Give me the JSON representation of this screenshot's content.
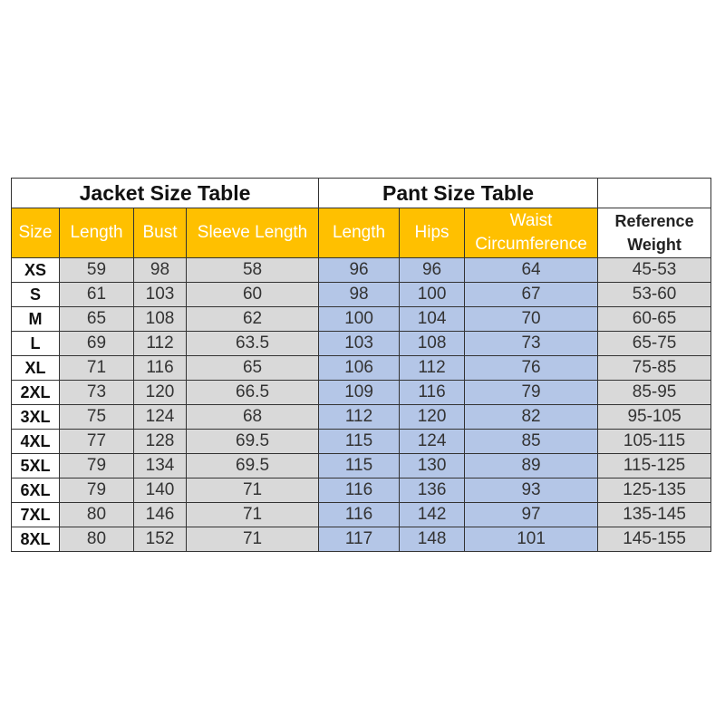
{
  "table": {
    "groups": [
      "Jacket Size Table",
      "Pant Size Table"
    ],
    "columns": [
      "Size",
      "Length",
      "Bust",
      "Sleeve Length",
      "Length",
      "Hips",
      "Waist Circumference",
      "Reference Weight"
    ],
    "rows": [
      [
        "XS",
        59,
        98,
        58,
        96,
        96,
        64,
        "45-53"
      ],
      [
        "S",
        61,
        103,
        60,
        98,
        100,
        67,
        "53-60"
      ],
      [
        "M",
        65,
        108,
        62,
        100,
        104,
        70,
        "60-65"
      ],
      [
        "L",
        69,
        112,
        63.5,
        103,
        108,
        73,
        "65-75"
      ],
      [
        "XL",
        71,
        116,
        65,
        106,
        112,
        76,
        "75-85"
      ],
      [
        "2XL",
        73,
        120,
        66.5,
        109,
        116,
        79,
        "85-95"
      ],
      [
        "3XL",
        75,
        124,
        68,
        112,
        120,
        82,
        "95-105"
      ],
      [
        "4XL",
        77,
        128,
        69.5,
        115,
        124,
        85,
        "105-115"
      ],
      [
        "5XL",
        79,
        134,
        69.5,
        115,
        130,
        89,
        "115-125"
      ],
      [
        "6XL",
        79,
        140,
        71,
        116,
        136,
        93,
        "125-135"
      ],
      [
        "7XL",
        80,
        146,
        71,
        116,
        142,
        97,
        "135-145"
      ],
      [
        "8XL",
        80,
        152,
        71,
        117,
        148,
        101,
        "145-155"
      ]
    ]
  }
}
